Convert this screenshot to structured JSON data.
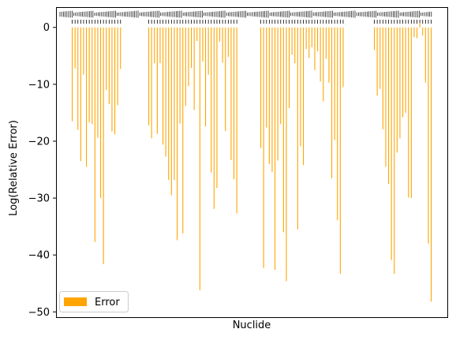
{
  "chart_data": {
    "type": "bar",
    "title": "",
    "xlabel": "Nuclide",
    "ylabel": "Log(Relative Error)",
    "ylim": [
      -51,
      3.5
    ],
    "yticks": [
      0,
      -10,
      -20,
      -30,
      -40,
      -50
    ],
    "ytick_labels": [
      "0",
      "−10",
      "−20",
      "−30",
      "−40",
      "−50"
    ],
    "grid": false,
    "legend_position": "lower-left",
    "bar_color": "#ffa500",
    "series": [
      {
        "name": "Error",
        "groups": [
          [
            -16.5,
            -7.2,
            -18.0,
            -23.5,
            -8.3,
            -24.5,
            -16.7,
            -17.0,
            -37.7,
            -19.4,
            -30.0,
            -41.6,
            -11.0,
            -13.5,
            -18.3,
            -18.8,
            -13.7,
            -7.3
          ],
          [
            -17.2,
            -19.5,
            -6.3,
            -18.7,
            -6.3,
            -20.6,
            -22.7,
            -26.8,
            -29.5,
            -26.8,
            -37.4,
            -16.9,
            -36.2,
            -13.8,
            -10.3,
            -7.1,
            -14.5,
            -2.4,
            -46.2,
            -6.0,
            -17.4,
            -8.3,
            -25.5,
            -31.9,
            -28.2,
            -2.5,
            -6.2,
            -18.2,
            -5.2,
            -23.3,
            -26.7,
            -32.7
          ],
          [
            -21.2,
            -42.3,
            -17.6,
            -24.0,
            -25.4,
            -42.6,
            -23.4,
            -17.0,
            -36.0,
            -44.6,
            -14.2,
            -4.8,
            -6.3,
            -35.5,
            -20.9,
            -24.2,
            -3.8,
            -5.4,
            -3.5,
            -7.5,
            -4.2,
            -9.5,
            -13.0,
            -5.5,
            -9.7,
            -26.5,
            -19.8,
            -33.9,
            -43.3,
            -10.5
          ],
          [
            -4.0,
            -12.0,
            -10.8,
            -17.9,
            -24.5,
            -27.5,
            -40.9,
            -43.3,
            -22.0,
            -19.5,
            -15.8,
            -15.0,
            -29.9,
            -30.0,
            -1.7,
            -1.9,
            0.8,
            -1.4,
            -9.7,
            -38.0,
            -48.2
          ]
        ]
      }
    ]
  }
}
